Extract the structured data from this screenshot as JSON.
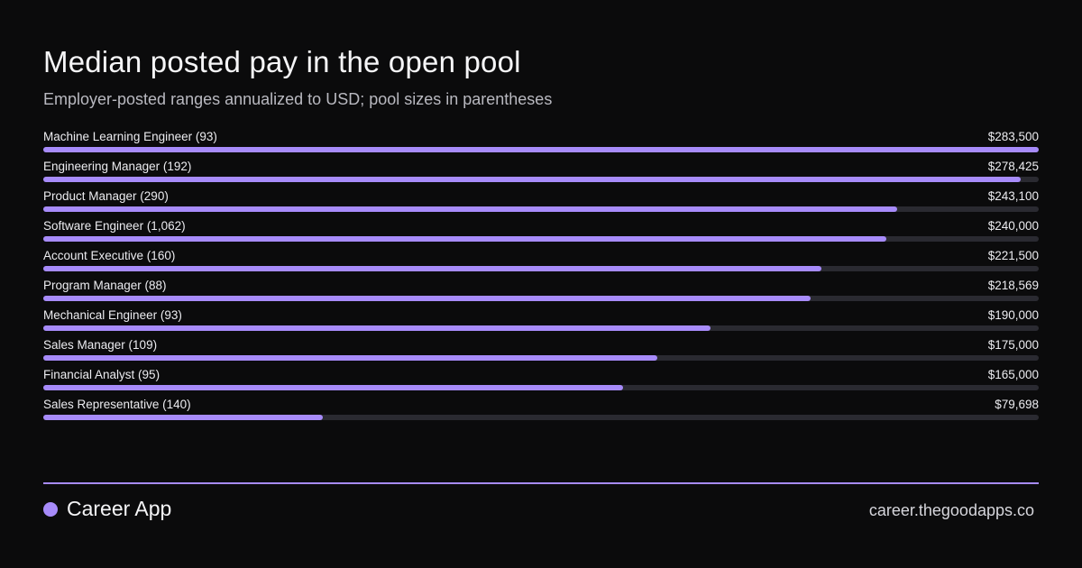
{
  "header": {
    "title": "Median posted pay in the open pool",
    "subtitle": "Employer-posted ranges annualized to USD; pool sizes in parentheses"
  },
  "chart_data": {
    "type": "bar",
    "orientation": "horizontal",
    "categories": [
      "Machine Learning Engineer (93)",
      "Engineering Manager (192)",
      "Product Manager (290)",
      "Software Engineer (1,062)",
      "Account Executive (160)",
      "Program Manager (88)",
      "Mechanical Engineer (93)",
      "Sales Manager (109)",
      "Financial Analyst (95)",
      "Sales Representative (140)"
    ],
    "values": [
      283500,
      278425,
      243100,
      240000,
      221500,
      218569,
      190000,
      175000,
      165000,
      79698
    ],
    "value_labels": [
      "$283,500",
      "$278,425",
      "$243,100",
      "$240,000",
      "$221,500",
      "$218,569",
      "$190,000",
      "$175,000",
      "$165,000",
      "$79,698"
    ],
    "xlim": [
      0,
      283500
    ],
    "grid": false,
    "legend": "none",
    "bar_color": "#a78bfa",
    "track_color": "#2a2a31"
  },
  "footer": {
    "brand_name": "Career App",
    "site": "career.thegoodapps.co",
    "accent_color": "#a78bfa"
  }
}
